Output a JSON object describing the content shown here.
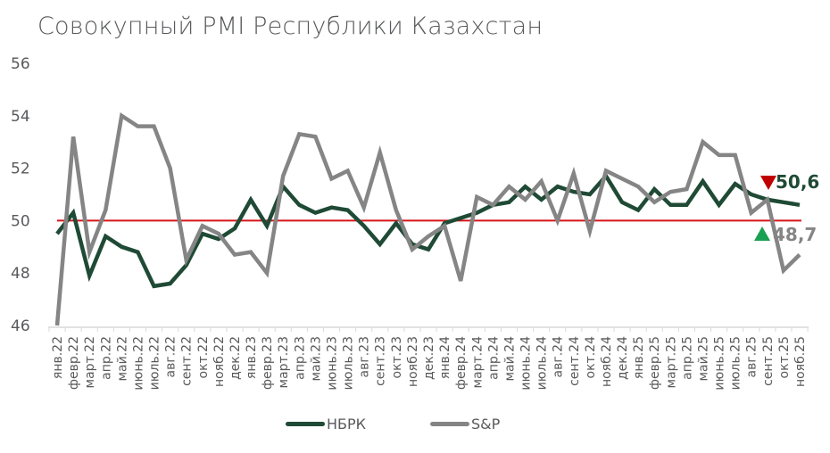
{
  "chart_data": {
    "type": "line",
    "title": "Совокупный PMI Республики Казахстан",
    "xlabel": "",
    "ylabel": "",
    "ylim": [
      46,
      56
    ],
    "yticks": [
      46,
      48,
      50,
      52,
      54,
      56
    ],
    "grid": false,
    "legend_position": "bottom",
    "reference_line": {
      "value": 50,
      "color": "#d7141a"
    },
    "categories": [
      "янв.22",
      "февр.22",
      "март.22",
      "апр.22",
      "май.22",
      "июнь.22",
      "июль.22",
      "авг.22",
      "сент.22",
      "окт.22",
      "нояб.22",
      "дек.22",
      "янв.23",
      "февр.23",
      "март.23",
      "апр.23",
      "май.23",
      "июнь.23",
      "июль.23",
      "авг.23",
      "сент.23",
      "окт.23",
      "нояб.23",
      "дек.23",
      "янв.24",
      "февр.24",
      "март.24",
      "апр.24",
      "май.24",
      "июнь.24",
      "июль.24",
      "авг.24",
      "сент.24",
      "окт.24",
      "нояб.24",
      "дек.24",
      "янв.25",
      "февр.25",
      "март.25",
      "апр.25",
      "май.25",
      "июнь.25",
      "июль.25",
      "авг.25",
      "сент.25",
      "окт.25",
      "нояб.25"
    ],
    "series": [
      {
        "name": "НБРК",
        "color": "#1f4a35",
        "values": [
          49.5,
          50.3,
          47.9,
          49.4,
          49.0,
          48.8,
          47.5,
          47.6,
          48.3,
          49.5,
          49.3,
          49.7,
          50.8,
          49.8,
          51.3,
          50.6,
          50.3,
          50.5,
          50.4,
          49.8,
          49.1,
          49.9,
          49.1,
          48.9,
          49.9,
          50.1,
          50.3,
          50.6,
          50.7,
          51.3,
          50.8,
          51.3,
          51.1,
          51.0,
          51.7,
          50.7,
          50.4,
          51.2,
          50.6,
          50.6,
          51.5,
          50.6,
          51.4,
          51.0,
          50.8,
          50.7,
          50.6
        ]
      },
      {
        "name": "S&P",
        "color": "#858585",
        "values": [
          46.0,
          53.2,
          48.8,
          50.4,
          54.0,
          53.6,
          53.6,
          52.0,
          48.5,
          49.8,
          49.5,
          48.7,
          48.8,
          48.0,
          51.7,
          53.3,
          53.2,
          51.6,
          51.9,
          50.5,
          52.6,
          50.4,
          48.9,
          49.4,
          49.8,
          47.7,
          50.9,
          50.6,
          51.3,
          50.8,
          51.5,
          50.0,
          51.8,
          49.6,
          51.9,
          51.6,
          51.3,
          50.7,
          51.1,
          51.2,
          53.0,
          52.5,
          52.5,
          50.3,
          50.8,
          48.1,
          48.7
        ]
      }
    ],
    "annotations": [
      {
        "series": "НБРК",
        "label": "50,6",
        "marker": "down-triangle",
        "marker_color": "#c00000",
        "text_color": "#1f4a35"
      },
      {
        "series": "S&P",
        "label": "48,7",
        "marker": "up-triangle",
        "marker_color": "#1aa052",
        "text_color": "#858585"
      }
    ]
  },
  "legend": {
    "items": [
      {
        "label": "НБРК",
        "color": "#1f4a35"
      },
      {
        "label": "S&P",
        "color": "#858585"
      }
    ]
  }
}
